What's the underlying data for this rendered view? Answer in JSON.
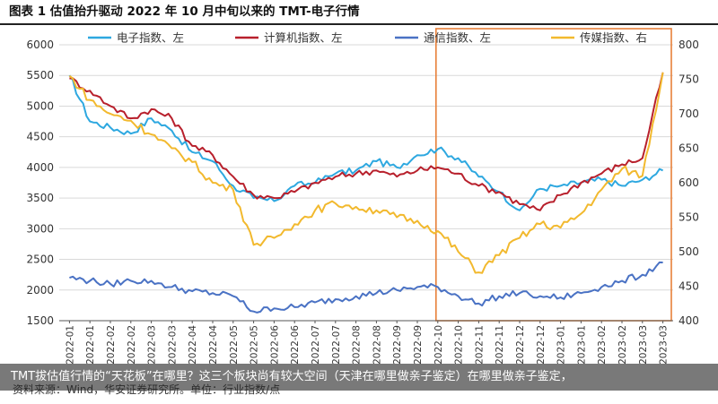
{
  "figure_title": "图表 1  估值抬升驱动 2022 年 10 月中旬以来的 TMT-电子行情",
  "source": "资料来源：Wind，华安证券研究所。单位：行业指数/点",
  "caption": "TMT拔估值行情的“天花板”在哪里？这三个板块尚有较大空间（天津在哪里做亲子鉴定）在哪里做亲子鉴定，",
  "chart_data": {
    "type": "line",
    "categories": [
      "2022-01",
      "2022-01",
      "2022-02",
      "2022-02",
      "2022-03",
      "2022-03",
      "2022-04",
      "2022-04",
      "2022-05",
      "2022-05",
      "2022-06",
      "2022-06",
      "2022-07",
      "2022-07",
      "2022-08",
      "2022-08",
      "2022-09",
      "2022-09",
      "2022-10",
      "2022-10",
      "2022-11",
      "2022-11",
      "2022-12",
      "2022-12",
      "2023-01",
      "2023-01",
      "2023-02",
      "2023-02",
      "2023-03",
      "2023-03"
    ],
    "y_left": {
      "ticks": [
        1500,
        2000,
        2500,
        3000,
        3500,
        4000,
        4500,
        5000,
        5500,
        6000
      ],
      "range": [
        1500,
        6000
      ]
    },
    "y_right": {
      "ticks": [
        400,
        450,
        500,
        550,
        600,
        650,
        700,
        750,
        800
      ],
      "range": [
        400,
        800
      ]
    },
    "highlight_range": [
      "2022-10",
      "2023-03"
    ],
    "highlight_color": "#E8803A",
    "series": [
      {
        "name": "电子指数、左",
        "axis": "left",
        "color": "#2EA8E0",
        "values": [
          5500,
          4750,
          4650,
          4550,
          4800,
          4600,
          4250,
          4100,
          3700,
          3500,
          3450,
          3700,
          3750,
          3900,
          3950,
          4100,
          4000,
          4200,
          4300,
          4150,
          3850,
          3600,
          3300,
          3650,
          3700,
          3750,
          3800,
          3700,
          3800,
          3950
        ]
      },
      {
        "name": "计算机指数、左",
        "axis": "left",
        "color": "#B8202C",
        "values": [
          5450,
          5250,
          5000,
          4800,
          4950,
          4800,
          4350,
          4200,
          3850,
          3550,
          3500,
          3600,
          3750,
          3850,
          3900,
          3950,
          3850,
          3950,
          4000,
          3900,
          3700,
          3600,
          3400,
          3300,
          3550,
          3750,
          3900,
          4050,
          4150,
          5550
        ]
      },
      {
        "name": "通信指数、左",
        "axis": "left",
        "color": "#4A72C4",
        "values": [
          2200,
          2150,
          2100,
          2150,
          2150,
          2050,
          1980,
          1950,
          1900,
          1650,
          1700,
          1720,
          1800,
          1850,
          1900,
          1950,
          2000,
          2050,
          2050,
          1900,
          1780,
          1900,
          1950,
          1900,
          1880,
          1950,
          2050,
          2150,
          2250,
          2450
        ]
      },
      {
        "name": "传媒指数、右",
        "axis": "right",
        "color": "#F2B92E",
        "values": [
          755,
          720,
          700,
          690,
          670,
          650,
          630,
          600,
          590,
          510,
          520,
          540,
          560,
          570,
          565,
          560,
          550,
          545,
          530,
          500,
          470,
          495,
          520,
          540,
          535,
          555,
          590,
          620,
          610,
          760
        ]
      }
    ]
  }
}
